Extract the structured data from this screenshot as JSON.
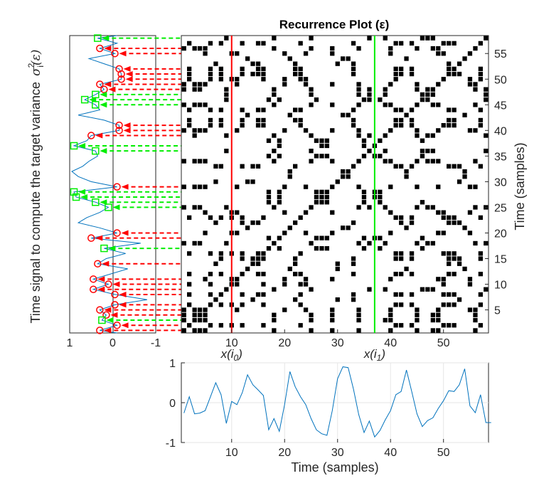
{
  "figure": {
    "title": "Recurrence Plot (ε)",
    "colors": {
      "series": "#0072bd",
      "red": "#ff0000",
      "green": "#00ee00",
      "grid": "#e6e6e6",
      "axis": "#262626",
      "dark_green": "#4d6b00",
      "dot": "#000000"
    }
  },
  "chart_data": [
    {
      "id": "recurrence-plot",
      "type": "heatmap",
      "title": "Recurrence Plot (ε)",
      "xlabel": "",
      "ylabel": "Time (samples)",
      "xlim": [
        0.5,
        58.5
      ],
      "ylim": [
        0.5,
        58.5
      ],
      "xticks": [
        10,
        20,
        30,
        40,
        50
      ],
      "yticks": [
        5,
        10,
        15,
        20,
        25,
        30,
        35,
        40,
        45,
        50,
        55
      ],
      "annotations": [
        {
          "label": "x(i",
          "sub": "0",
          "close": ")",
          "x": 10,
          "color": "red"
        },
        {
          "label": "x(i",
          "sub": "1",
          "close": ")",
          "x": 37,
          "color": "green"
        }
      ],
      "series_ref": "time-signal"
    },
    {
      "id": "time-signal",
      "type": "line",
      "xlabel": "Time (samples)",
      "ylabel": "",
      "xlim": [
        0.5,
        58.5
      ],
      "ylim": [
        -1,
        1
      ],
      "xticks": [
        10,
        20,
        30,
        40,
        50
      ],
      "yticks": [
        -1,
        0,
        1
      ],
      "grid": true,
      "x": [
        1,
        2,
        3,
        4,
        5,
        6,
        7,
        8,
        9,
        10,
        11,
        12,
        13,
        14,
        15,
        16,
        17,
        18,
        19,
        20,
        21,
        22,
        23,
        24,
        25,
        26,
        27,
        28,
        29,
        30,
        31,
        32,
        33,
        34,
        35,
        36,
        37,
        38,
        39,
        40,
        41,
        42,
        43,
        44,
        45,
        46,
        47,
        48,
        49,
        50,
        51,
        52,
        53,
        54,
        55,
        56,
        57,
        58,
        59
      ],
      "values": [
        -0.26,
        0.15,
        -0.28,
        -0.26,
        -0.2,
        0.15,
        0.5,
        0.2,
        -0.52,
        0.03,
        -0.05,
        0.25,
        0.7,
        0.45,
        0.32,
        0.18,
        -0.68,
        -0.4,
        -0.72,
        -0.05,
        0.78,
        0.4,
        0.15,
        -0.05,
        -0.4,
        -0.68,
        -0.78,
        -0.82,
        -0.2,
        0.6,
        0.9,
        0.88,
        0.34,
        -0.3,
        -0.75,
        -0.46,
        -0.86,
        -0.7,
        -0.43,
        -0.2,
        0.2,
        0.28,
        0.82,
        0.28,
        -0.28,
        -0.6,
        -0.45,
        -0.38,
        -0.15,
        0.05,
        0.3,
        0.28,
        0.45,
        0.85,
        -0.08,
        -0.25,
        0.2,
        -0.5,
        -0.5
      ]
    },
    {
      "id": "target-variance",
      "type": "line",
      "xlabel": "",
      "ylabel": "Time signal to compute the target variance σ²ᵢ(ε)",
      "xlim": [
        1,
        -1
      ],
      "ylim": [
        0.5,
        58.5
      ],
      "xticks": [
        1,
        0,
        -1
      ],
      "points": [
        [
          -0.1,
          0.5
        ],
        [
          0.3,
          1
        ],
        [
          -0.1,
          2
        ],
        [
          0.25,
          3
        ],
        [
          0.15,
          4
        ],
        [
          0.3,
          5
        ],
        [
          -0.05,
          6
        ],
        [
          -0.8,
          7
        ],
        [
          -0.05,
          8
        ],
        [
          0.45,
          9
        ],
        [
          0.1,
          10
        ],
        [
          0.45,
          11
        ],
        [
          0.05,
          12
        ],
        [
          -0.35,
          13
        ],
        [
          0.35,
          14
        ],
        [
          0.15,
          15
        ],
        [
          -0.3,
          16
        ],
        [
          0.2,
          17
        ],
        [
          -0.65,
          18
        ],
        [
          0.5,
          19
        ],
        [
          -0.1,
          20
        ],
        [
          0.3,
          21
        ],
        [
          0.8,
          22
        ],
        [
          0.6,
          23
        ],
        [
          0.3,
          24
        ],
        [
          0.1,
          25
        ],
        [
          0.4,
          26
        ],
        [
          0.85,
          27
        ],
        [
          0.9,
          28
        ],
        [
          -0.1,
          29
        ],
        [
          0.5,
          30
        ],
        [
          0.8,
          31
        ],
        [
          0.95,
          32
        ],
        [
          0.7,
          33
        ],
        [
          0.55,
          34
        ],
        [
          0.35,
          35
        ],
        [
          0.4,
          36
        ],
        [
          0.9,
          37
        ],
        [
          0.6,
          38
        ],
        [
          0.5,
          39
        ],
        [
          -0.15,
          40
        ],
        [
          -0.15,
          41
        ],
        [
          0.2,
          42
        ],
        [
          0.8,
          43
        ],
        [
          0.3,
          44
        ],
        [
          0.4,
          45
        ],
        [
          0.65,
          46
        ],
        [
          0.4,
          47
        ],
        [
          0.2,
          48
        ],
        [
          0.3,
          49
        ],
        [
          -0.2,
          50
        ],
        [
          -0.2,
          51
        ],
        [
          -0.15,
          52
        ],
        [
          0.2,
          53
        ],
        [
          0.55,
          54
        ],
        [
          -0.05,
          55
        ],
        [
          0.3,
          56
        ],
        [
          -0.1,
          57
        ],
        [
          0.35,
          58
        ],
        [
          -0.1,
          58.5
        ]
      ],
      "red_markers": [
        1,
        2,
        4,
        5,
        6,
        8,
        9,
        10,
        11,
        14,
        19,
        20,
        29,
        39,
        40,
        41,
        48,
        49,
        50,
        51,
        52,
        55,
        56
      ],
      "green_markers": [
        3,
        17,
        25,
        26,
        27,
        28,
        36,
        37,
        45,
        46,
        47,
        58
      ]
    }
  ]
}
